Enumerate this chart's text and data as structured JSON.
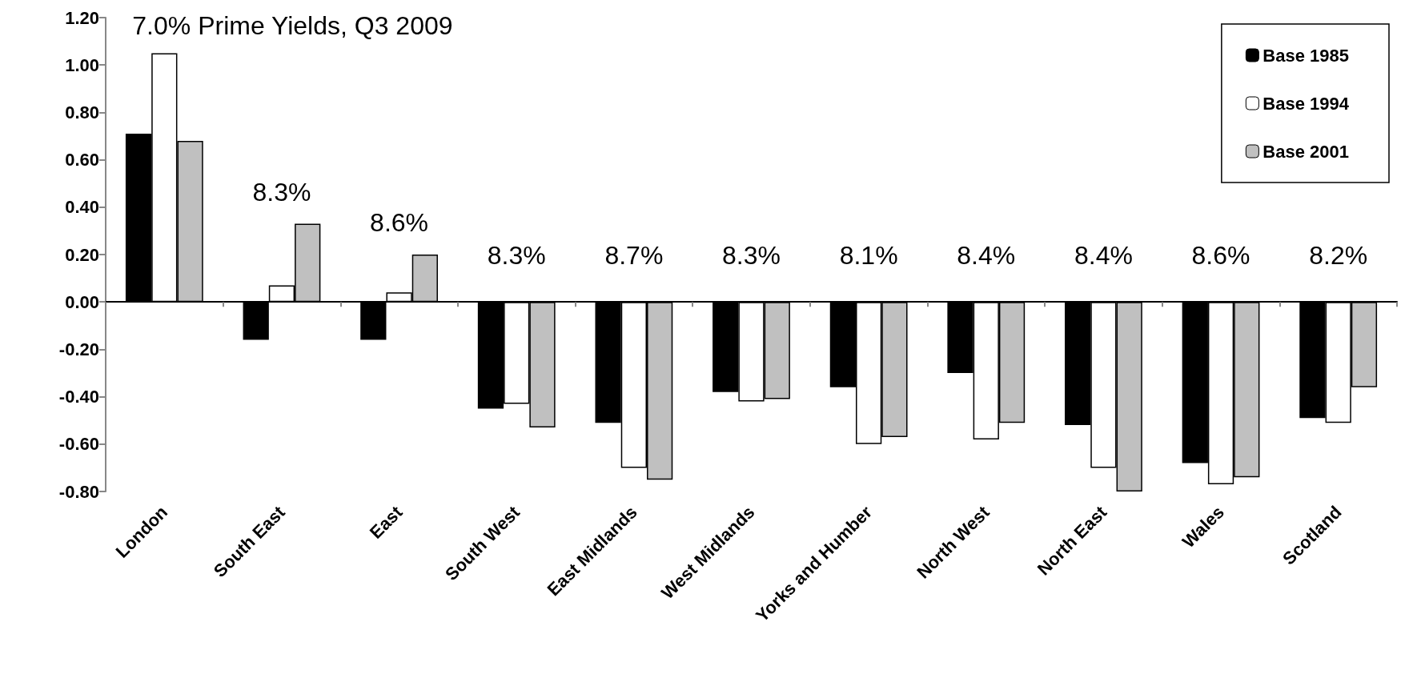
{
  "chart_data": {
    "type": "bar",
    "categories": [
      "London",
      "South East",
      "East",
      "South West",
      "East Midlands",
      "West Midlands",
      "Yorks and Humber",
      "North West",
      "North East",
      "Wales",
      "Scotland"
    ],
    "series": [
      {
        "name": "Base 1985",
        "color": "#000000",
        "values": [
          0.71,
          -0.16,
          -0.16,
          -0.45,
          -0.51,
          -0.38,
          -0.36,
          -0.3,
          -0.52,
          -0.68,
          -0.49
        ]
      },
      {
        "name": "Base 1994",
        "color": "#ffffff",
        "values": [
          1.05,
          0.07,
          0.04,
          -0.43,
          -0.7,
          -0.42,
          -0.6,
          -0.58,
          -0.7,
          -0.77,
          -0.51
        ]
      },
      {
        "name": "Base 2001",
        "color": "#c0c0c0",
        "values": [
          0.68,
          0.33,
          0.2,
          -0.53,
          -0.75,
          -0.41,
          -0.57,
          -0.51,
          -0.8,
          -0.74,
          -0.36
        ]
      }
    ],
    "ylim": [
      -0.8,
      1.2
    ],
    "yticks": [
      {
        "value": -0.8,
        "label": "-0.80"
      },
      {
        "value": -0.6,
        "label": "-0.60"
      },
      {
        "value": -0.4,
        "label": "-0.40"
      },
      {
        "value": -0.2,
        "label": "-0.20"
      },
      {
        "value": 0,
        "label": "0.00"
      },
      {
        "value": 0.2,
        "label": "0.20"
      },
      {
        "value": 0.4,
        "label": "0.40"
      },
      {
        "value": 0.6,
        "label": "0.60"
      },
      {
        "value": 0.8,
        "label": "0.80"
      },
      {
        "value": 1.0,
        "label": "1.00"
      },
      {
        "value": 1.2,
        "label": "1.20"
      }
    ],
    "legend": "top right",
    "annotations": [
      "7.0% Prime Yields, Q3 2009",
      "8.3%",
      "8.6%",
      "8.3%",
      "8.7%",
      "8.3%",
      "8.1%",
      "8.4%",
      "8.4%",
      "8.6%",
      "8.2%"
    ]
  }
}
